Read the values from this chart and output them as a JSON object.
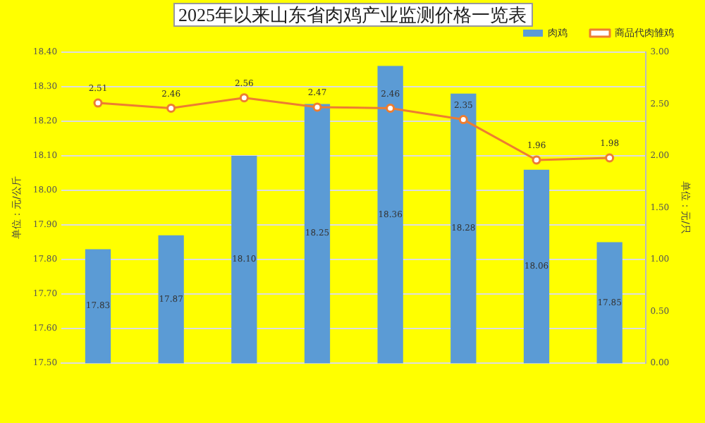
{
  "chart_data": {
    "type": "bar",
    "title": "2025年以来山东省肉鸡产业监测价格一览表",
    "categories": [
      null,
      null,
      null,
      null,
      null,
      null,
      null,
      null
    ],
    "series": [
      {
        "name": "肉鸡",
        "color": "#5b9bd5",
        "values": [
          17.83,
          17.87,
          18.1,
          18.25,
          18.36,
          18.28,
          18.06,
          17.85
        ],
        "value_labels": [
          "17.83",
          "17.87",
          "18.10",
          "18.25",
          "18.36",
          "18.28",
          "18.06",
          "17.85"
        ]
      },
      {
        "name": "商品代肉雏鸡",
        "type": "line",
        "axis": "y2",
        "color": "#ed7d31",
        "values": [
          2.51,
          2.46,
          2.56,
          2.47,
          2.46,
          2.35,
          1.96,
          1.98
        ],
        "value_labels": [
          "2.51",
          "2.46",
          "2.56",
          "2.47",
          "2.46",
          "2.35",
          "1.96",
          "1.98"
        ]
      }
    ],
    "ylabel": "单位：元/公斤",
    "y2label": "单位：元/只",
    "ylim": [
      17.5,
      18.4
    ],
    "yticks": [
      {
        "value": 17.5,
        "label": "17.50"
      },
      {
        "value": 17.6,
        "label": "17.60"
      },
      {
        "value": 17.7,
        "label": "17.70"
      },
      {
        "value": 17.8,
        "label": "17.80"
      },
      {
        "value": 17.9,
        "label": "17.90"
      },
      {
        "value": 18.0,
        "label": "18.00"
      },
      {
        "value": 18.1,
        "label": "18.10"
      },
      {
        "value": 18.2,
        "label": "18.20"
      },
      {
        "value": 18.3,
        "label": "18.30"
      },
      {
        "value": 18.4,
        "label": "18.40"
      }
    ],
    "y2lim": [
      0,
      3
    ],
    "y2ticks": [
      {
        "value": 0,
        "label": "0.00"
      },
      {
        "value": 0.5,
        "label": "0.50"
      },
      {
        "value": 1,
        "label": "1.00"
      },
      {
        "value": 1.5,
        "label": "1.50"
      },
      {
        "value": 2,
        "label": "2.00"
      },
      {
        "value": 2.5,
        "label": "2.50"
      },
      {
        "value": 3,
        "label": "3.00"
      }
    ],
    "grid": "y",
    "legend": "top right",
    "marker": "circle"
  }
}
